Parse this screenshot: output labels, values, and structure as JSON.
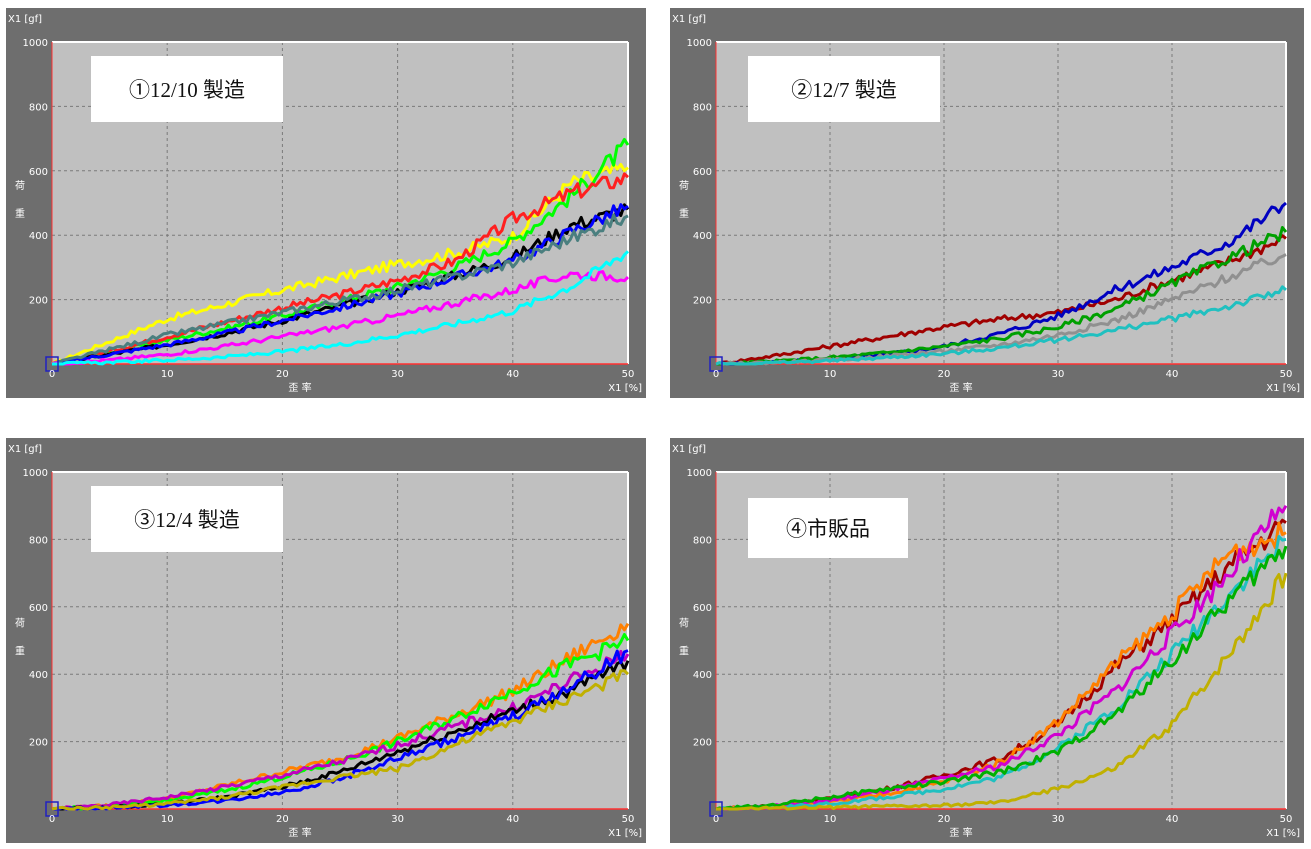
{
  "colors": {
    "panel_bg": "#6e6e6e",
    "plot_bg": "#c0c0c0",
    "grid": "#7a7a7a",
    "frame": "#ffffff",
    "zero_line": "#ff3030"
  },
  "chart_data": [
    {
      "type": "line",
      "title": "①12/10 製造",
      "ylabel": "荷\n重",
      "xlabel": "歪 率",
      "y_unit": "X1 [gf]",
      "x_unit": "X1 [%]",
      "xlim": [
        0,
        50
      ],
      "ylim": [
        0,
        1000
      ],
      "x_ticks": [
        "0",
        "10",
        "20",
        "30",
        "40",
        "50"
      ],
      "y_ticks": [
        "200",
        "400",
        "600",
        "800",
        "1000"
      ],
      "grid": true,
      "x": [
        0,
        5,
        10,
        15,
        20,
        25,
        30,
        35,
        40,
        45,
        50
      ],
      "series": [
        {
          "color": "#ffff00",
          "values": [
            0,
            70,
            140,
            185,
            230,
            270,
            310,
            345,
            395,
            560,
            610
          ]
        },
        {
          "color": "#00ff00",
          "values": [
            0,
            35,
            75,
            110,
            150,
            195,
            240,
            300,
            380,
            520,
            680
          ]
        },
        {
          "color": "#ff2020",
          "values": [
            0,
            40,
            85,
            130,
            175,
            215,
            260,
            320,
            450,
            530,
            580
          ]
        },
        {
          "color": "#000000",
          "values": [
            0,
            30,
            60,
            95,
            135,
            180,
            225,
            275,
            330,
            430,
            480
          ]
        },
        {
          "color": "#0000ff",
          "values": [
            0,
            30,
            60,
            95,
            135,
            175,
            220,
            270,
            320,
            410,
            490
          ]
        },
        {
          "color": "#4a7f7f",
          "values": [
            0,
            45,
            90,
            125,
            160,
            195,
            230,
            270,
            315,
            390,
            460
          ]
        },
        {
          "color": "#ff00ff",
          "values": [
            0,
            12,
            30,
            55,
            85,
            115,
            150,
            190,
            230,
            280,
            270
          ]
        },
        {
          "color": "#00ffff",
          "values": [
            0,
            5,
            12,
            22,
            38,
            60,
            90,
            125,
            165,
            240,
            350
          ]
        }
      ]
    },
    {
      "type": "line",
      "title": "②12/7 製造",
      "ylabel": "荷\n重",
      "xlabel": "歪 率",
      "y_unit": "X1 [gf]",
      "x_unit": "X1 [%]",
      "xlim": [
        0,
        50
      ],
      "ylim": [
        0,
        1000
      ],
      "x_ticks": [
        "0",
        "10",
        "20",
        "30",
        "40",
        "50"
      ],
      "y_ticks": [
        "200",
        "400",
        "600",
        "800",
        "1000"
      ],
      "grid": true,
      "x": [
        0,
        5,
        10,
        15,
        20,
        25,
        30,
        35,
        40,
        45,
        50
      ],
      "series": [
        {
          "color": "#a00000",
          "values": [
            0,
            25,
            55,
            85,
            115,
            140,
            160,
            200,
            260,
            320,
            390
          ]
        },
        {
          "color": "#0000c0",
          "values": [
            0,
            5,
            15,
            30,
            55,
            95,
            150,
            230,
            300,
            380,
            500
          ]
        },
        {
          "color": "#00a000",
          "values": [
            0,
            8,
            20,
            35,
            55,
            80,
            115,
            170,
            250,
            330,
            410
          ]
        },
        {
          "color": "#909090",
          "values": [
            0,
            5,
            12,
            25,
            40,
            60,
            90,
            135,
            200,
            270,
            340
          ]
        },
        {
          "color": "#20c0c0",
          "values": [
            0,
            4,
            10,
            20,
            32,
            50,
            75,
            105,
            140,
            180,
            230
          ]
        }
      ]
    },
    {
      "type": "line",
      "title": "③12/4 製造",
      "ylabel": "荷\n重",
      "xlabel": "歪 率",
      "y_unit": "X1 [gf]",
      "x_unit": "X1 [%]",
      "xlim": [
        0,
        50
      ],
      "ylim": [
        0,
        1000
      ],
      "x_ticks": [
        "0",
        "10",
        "20",
        "30",
        "40",
        "50"
      ],
      "y_ticks": [
        "200",
        "400",
        "600",
        "800",
        "1000"
      ],
      "grid": true,
      "x": [
        0,
        5,
        10,
        15,
        20,
        25,
        30,
        35,
        40,
        45,
        50
      ],
      "series": [
        {
          "color": "#ff8000",
          "values": [
            0,
            10,
            30,
            70,
            110,
            150,
            210,
            280,
            350,
            450,
            550
          ]
        },
        {
          "color": "#00ff00",
          "values": [
            0,
            8,
            25,
            55,
            95,
            140,
            200,
            270,
            350,
            430,
            500
          ]
        },
        {
          "color": "#c000c0",
          "values": [
            0,
            12,
            35,
            65,
            100,
            140,
            190,
            245,
            300,
            380,
            460
          ]
        },
        {
          "color": "#000000",
          "values": [
            0,
            5,
            15,
            35,
            65,
            110,
            170,
            230,
            290,
            350,
            440
          ]
        },
        {
          "color": "#0000ff",
          "values": [
            0,
            4,
            12,
            25,
            50,
            90,
            150,
            210,
            275,
            360,
            470
          ]
        },
        {
          "color": "#c0b000",
          "values": [
            0,
            5,
            15,
            35,
            65,
            95,
            120,
            190,
            260,
            330,
            400
          ]
        }
      ]
    },
    {
      "type": "line",
      "title": "④市販品",
      "ylabel": "荷\n重",
      "xlabel": "歪 率",
      "y_unit": "X1 [gf]",
      "x_unit": "X1 [%]",
      "xlim": [
        0,
        50
      ],
      "ylim": [
        0,
        1000
      ],
      "x_ticks": [
        "0",
        "10",
        "20",
        "30",
        "40",
        "50"
      ],
      "y_ticks": [
        "200",
        "400",
        "600",
        "800",
        "1000"
      ],
      "grid": true,
      "x": [
        0,
        5,
        10,
        15,
        20,
        25,
        30,
        35,
        40,
        45,
        50
      ],
      "series": [
        {
          "color": "#a00000",
          "values": [
            0,
            10,
            30,
            60,
            100,
            150,
            250,
            420,
            560,
            720,
            850
          ]
        },
        {
          "color": "#ff8000",
          "values": [
            0,
            8,
            20,
            45,
            80,
            140,
            260,
            430,
            580,
            760,
            820
          ]
        },
        {
          "color": "#d000d0",
          "values": [
            0,
            8,
            25,
            55,
            90,
            130,
            220,
            350,
            520,
            700,
            900
          ]
        },
        {
          "color": "#20c0c0",
          "values": [
            0,
            6,
            15,
            35,
            60,
            95,
            180,
            300,
            460,
            640,
            800
          ]
        },
        {
          "color": "#00b000",
          "values": [
            0,
            12,
            35,
            60,
            80,
            110,
            170,
            280,
            440,
            620,
            780
          ]
        },
        {
          "color": "#c0b000",
          "values": [
            0,
            3,
            5,
            8,
            10,
            20,
            60,
            120,
            250,
            460,
            700
          ]
        }
      ]
    }
  ]
}
